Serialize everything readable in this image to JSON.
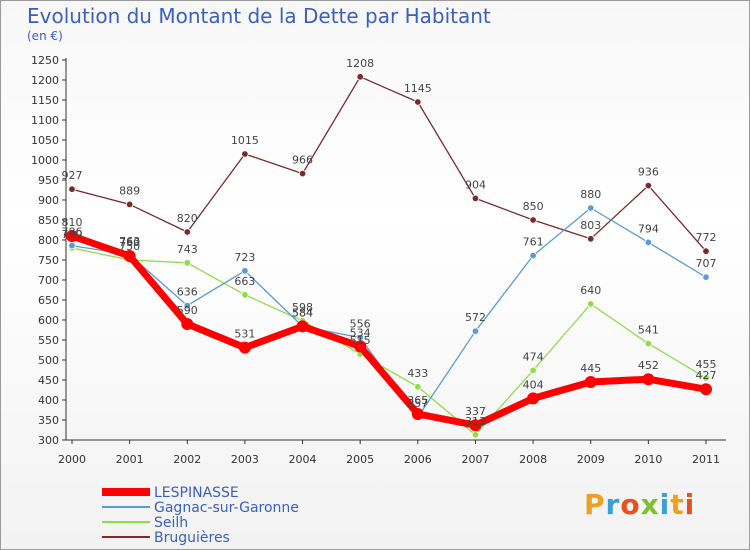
{
  "title": "Evolution du Montant de la Dette par Habitant",
  "subtitle": "(en €)",
  "logo_text": "Proxiti",
  "chart_data": {
    "type": "line",
    "title": "Evolution du Montant de la Dette par Habitant",
    "subtitle": "(en €)",
    "x": [
      "2000",
      "2001",
      "2002",
      "2003",
      "2004",
      "2005",
      "2006",
      "2007",
      "2008",
      "2009",
      "2010",
      "2011"
    ],
    "ylim": [
      300,
      1250
    ],
    "yticks": [
      300,
      350,
      400,
      450,
      500,
      550,
      600,
      650,
      700,
      750,
      800,
      850,
      900,
      950,
      1000,
      1050,
      1100,
      1150,
      1200,
      1250
    ],
    "grid": false,
    "legend_position": "bottom-left",
    "series": [
      {
        "name": "LESPINASSE",
        "color": "#ff0000",
        "values": [
          810,
          760,
          590,
          531,
          584,
          534,
          365,
          337,
          404,
          445,
          452,
          427
        ]
      },
      {
        "name": "Gagnac-sur-Garonne",
        "color": "#5b9bd5",
        "values": [
          786,
          763,
          636,
          723,
          584,
          556,
          357,
          572,
          761,
          880,
          794,
          707
        ]
      },
      {
        "name": "Seilh",
        "color": "#8fdc4a",
        "values": [
          780,
          750,
          743,
          663,
          598,
          515,
          433,
          313,
          474,
          640,
          541,
          455
        ]
      },
      {
        "name": "Bruguières",
        "color": "#7a2a2a",
        "values": [
          927,
          889,
          820,
          1015,
          966,
          1208,
          1145,
          904,
          850,
          803,
          936,
          772
        ]
      }
    ]
  }
}
